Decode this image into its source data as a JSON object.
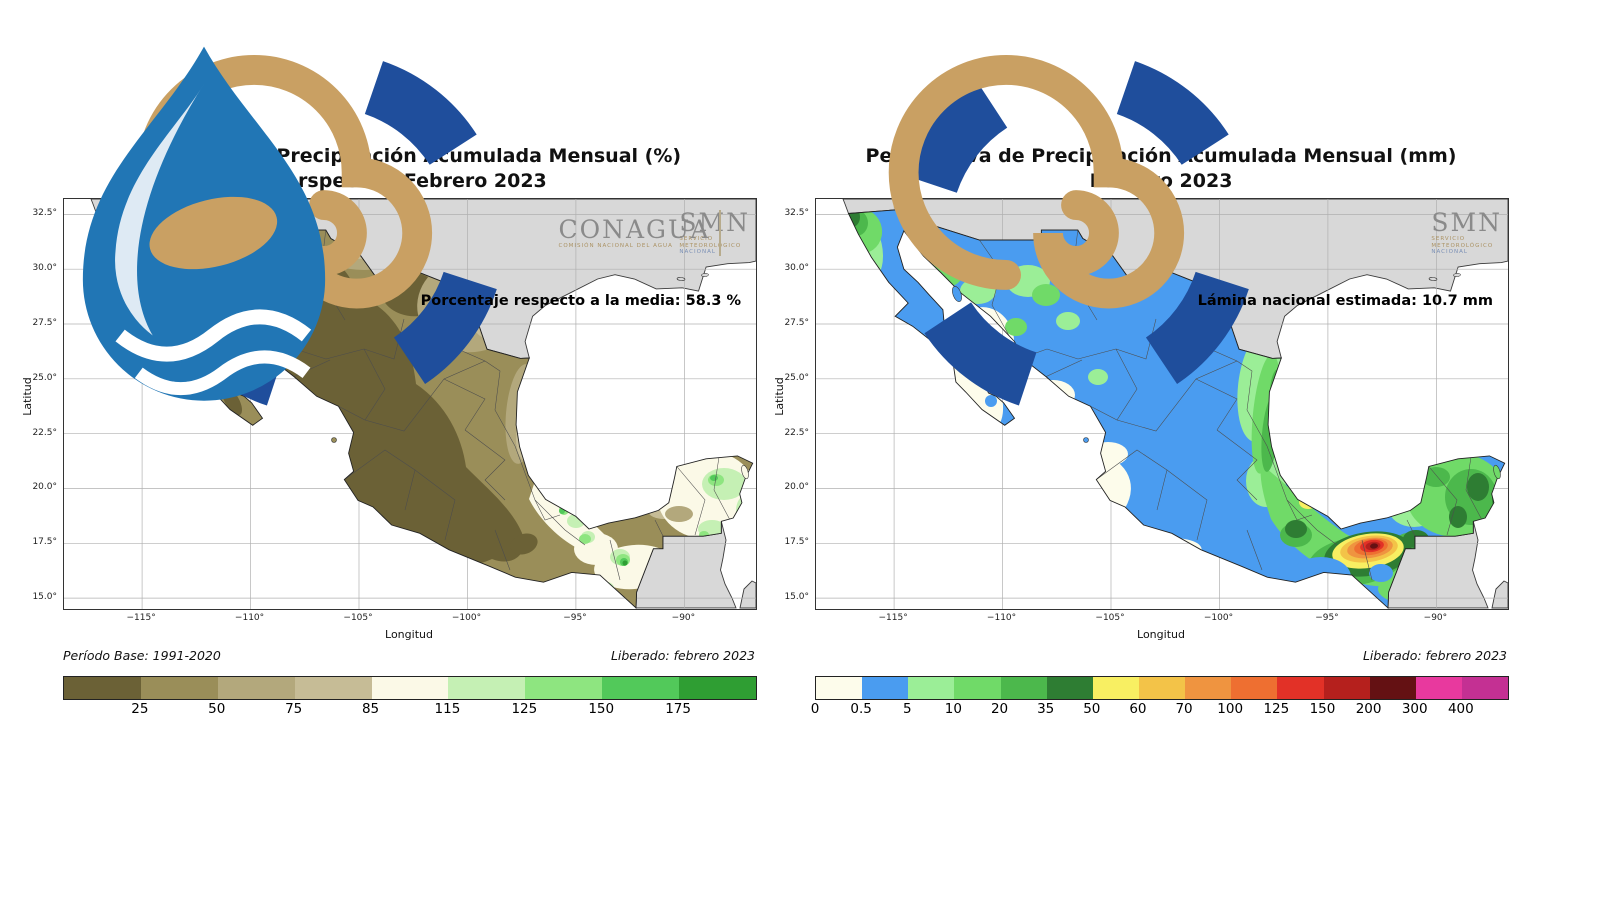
{
  "map_colors": {
    "ocean": "#ffffff",
    "other_land": "#d8d8d8",
    "country_border": "#3a3a3a",
    "state_border": "#4d4d4d",
    "grid": "#b0b0b0"
  },
  "logos": {
    "conagua_name": "CONAGUA",
    "conagua_sub": "COMISIÓN NACIONAL DEL AGUA",
    "smn_name": "SMN",
    "smn_sub1": "SERVICIO",
    "smn_sub2": "METEOROLÓGICO",
    "smn_sub3": "NACIONAL",
    "conagua_blue": "#2176b5",
    "gold": "#c9a063",
    "navy": "#1f4e9c",
    "gray_text": "#8a8a8a"
  },
  "panels": [
    {
      "title_line1": "Anomalía de Precipitación Acumulada Mensual (%)",
      "title_line2": "Perspectiva Febrero 2023",
      "annotation": "Porcentaje respecto a la media: 58.3 %",
      "footer_left": "Período Base: 1991-2020",
      "footer_right": "Liberado: febrero 2023",
      "xlabel": "Longitud",
      "ylabel": "Latitud",
      "x_tick_labels": [
        "−115°",
        "−110°",
        "−105°",
        "−100°",
        "−95°",
        "−90°"
      ],
      "x_tick_values": [
        -115,
        -110,
        -105,
        -100,
        -95,
        -90
      ],
      "y_tick_labels": [
        "32.5°",
        "30.0°",
        "27.5°",
        "25.0°",
        "22.5°",
        "20.0°",
        "17.5°",
        "15.0°"
      ],
      "y_tick_values": [
        32.5,
        30,
        27.5,
        25,
        22.5,
        20,
        17.5,
        15
      ],
      "colorbar": {
        "labels": [
          "25",
          "50",
          "75",
          "85",
          "115",
          "125",
          "150",
          "175"
        ],
        "label_mode": "inner",
        "colors": [
          "#6b6136",
          "#9a8e59",
          "#b3a87c",
          "#c6bc96",
          "#fbf9e7",
          "#c5f0b4",
          "#8ee580",
          "#52c95a",
          "#2f9e33"
        ]
      }
    },
    {
      "title_line1": "Perspectiva de Precipitación Acumulada Mensual (mm)",
      "title_line2": "Febrero 2023",
      "annotation": "Lámina nacional estimada: 10.7 mm",
      "footer_left": "",
      "footer_right": "Liberado: febrero 2023",
      "xlabel": "Longitud",
      "ylabel": "Latitud",
      "x_tick_labels": [
        "−115°",
        "−110°",
        "−105°",
        "−100°",
        "−95°",
        "−90°"
      ],
      "x_tick_values": [
        -115,
        -110,
        -105,
        -100,
        -95,
        -90
      ],
      "y_tick_labels": [
        "32.5°",
        "30.0°",
        "27.5°",
        "25.0°",
        "22.5°",
        "20.0°",
        "17.5°",
        "15.0°"
      ],
      "y_tick_values": [
        32.5,
        30,
        27.5,
        25,
        22.5,
        20,
        17.5,
        15
      ],
      "colorbar": {
        "labels": [
          "0",
          "0.5",
          "5",
          "10",
          "20",
          "35",
          "50",
          "60",
          "70",
          "100",
          "125",
          "150",
          "200",
          "300",
          "400"
        ],
        "label_mode": "edge",
        "colors": [
          "#fdfceb",
          "#4a9cf0",
          "#9bee97",
          "#70da68",
          "#4cb84c",
          "#2e7d33",
          "#f8ef62",
          "#f3c348",
          "#ef9440",
          "#ee6f31",
          "#e23127",
          "#b5201d",
          "#641113",
          "#e8399e",
          "#c43093"
        ]
      }
    }
  ],
  "chart_data": [
    {
      "type": "heatmap",
      "title": "Anomalía de Precipitación Acumulada Mensual (%) — Perspectiva Febrero 2023",
      "xlabel": "Longitud",
      "ylabel": "Latitud",
      "x_ticks": [
        -115,
        -110,
        -105,
        -100,
        -95,
        -90
      ],
      "y_ticks": [
        32.5,
        30.0,
        27.5,
        25.0,
        22.5,
        20.0,
        17.5,
        15.0
      ],
      "colorbar_bounds": [
        25,
        50,
        75,
        85,
        115,
        125,
        150,
        175
      ],
      "colorbar_colors": [
        "#6b6136",
        "#9a8e59",
        "#b3a87c",
        "#c6bc96",
        "#fbf9e7",
        "#c5f0b4",
        "#8ee580",
        "#52c95a",
        "#2f9e33"
      ],
      "annotation": "Porcentaje respecto a la media: 58.3 %",
      "base_period": "1991-2020",
      "released": "febrero 2023",
      "summary": "Most of Mexico below 50% of normal precipitation (brown); Yucatán and coastal Veracruz near normal (85-115, cream); scattered above-normal green spots (125-175%) in Veracruz, Tabasco, Chiapas and northeastern Yucatán."
    },
    {
      "type": "heatmap",
      "title": "Perspectiva de Precipitación Acumulada Mensual (mm) — Febrero 2023",
      "xlabel": "Longitud",
      "ylabel": "Latitud",
      "x_ticks": [
        -115,
        -110,
        -105,
        -100,
        -95,
        -90
      ],
      "y_ticks": [
        32.5,
        30.0,
        27.5,
        25.0,
        22.5,
        20.0,
        17.5,
        15.0
      ],
      "colorbar_bounds": [
        0,
        0.5,
        5,
        10,
        20,
        35,
        50,
        60,
        70,
        100,
        125,
        150,
        200,
        300,
        400
      ],
      "colorbar_colors": [
        "#fdfceb",
        "#4a9cf0",
        "#9bee97",
        "#70da68",
        "#4cb84c",
        "#2e7d33",
        "#f8ef62",
        "#f3c348",
        "#ef9440",
        "#ee6f31",
        "#e23127",
        "#b5201d",
        "#641113",
        "#e8399e",
        "#c43093"
      ],
      "annotation": "Lámina nacional estimada: 10.7 mm",
      "released": "febrero 2023",
      "summary": "0.5-5 mm (blue) over most of northern and central Mexico; near 0 mm (cream) in Baja California Sur and the central-west; 10-50 mm (greens) along the Gulf coast, NW Baja California and Yucatán; maximum 200-300+ mm (red/maroon core) on the Oaxaca-Chiapas-Veracruz border region."
    }
  ]
}
